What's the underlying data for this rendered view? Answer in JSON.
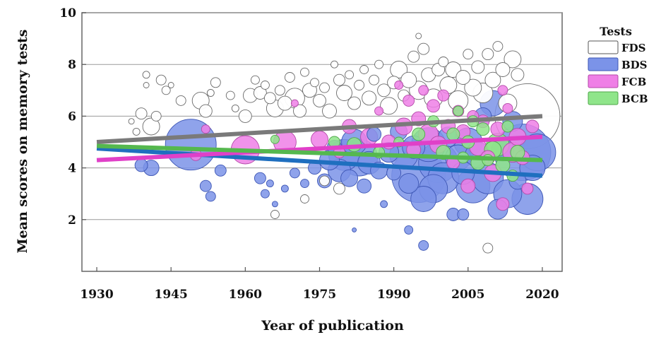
{
  "chart_data": {
    "type": "scatter",
    "subtype": "bubble-meta-regression",
    "title": "",
    "xlabel": "Year of publication",
    "ylabel": "Mean scores on memory tests",
    "xlim": [
      1927,
      2024
    ],
    "ylim": [
      0,
      10
    ],
    "x_ticks": [
      1930,
      1945,
      1960,
      1975,
      1990,
      2005,
      2020
    ],
    "y_ticks": [
      2,
      4,
      6,
      8,
      10
    ],
    "grid": "horizontal",
    "legend": {
      "title": "Tests",
      "placement": "right",
      "entries": [
        {
          "label": "FDS",
          "color": "#ffffff",
          "stroke": "#555555"
        },
        {
          "label": "BDS",
          "color": "#7b93e8",
          "stroke": "#3d56b5"
        },
        {
          "label": "FCB",
          "color": "#ef7fe6",
          "stroke": "#b34aa8"
        },
        {
          "label": "BCB",
          "color": "#8fe58a",
          "stroke": "#4fa84a"
        }
      ]
    },
    "trend_lines": [
      {
        "name": "FDS",
        "color": "#7a7a7a",
        "x": [
          1930,
          2020
        ],
        "y": [
          5.0,
          6.0
        ]
      },
      {
        "name": "BDS",
        "color": "#1f6fbf",
        "x": [
          1930,
          2020
        ],
        "y": [
          4.75,
          3.7
        ]
      },
      {
        "name": "FCB",
        "color": "#e040c8",
        "x": [
          1930,
          2020
        ],
        "y": [
          4.3,
          5.2
        ]
      },
      {
        "name": "BCB",
        "color": "#55b84e",
        "x": [
          1930,
          2020
        ],
        "y": [
          4.85,
          4.3
        ]
      }
    ],
    "series": [
      {
        "name": "FDS",
        "color": "#ffffff",
        "stroke": "#6a6a6a",
        "points": [
          [
            1937,
            5.8,
            4
          ],
          [
            1938,
            5.4,
            5
          ],
          [
            1939,
            6.1,
            8
          ],
          [
            1940,
            7.6,
            5
          ],
          [
            1940,
            7.2,
            4
          ],
          [
            1941,
            5.6,
            12
          ],
          [
            1942,
            6.0,
            7
          ],
          [
            1943,
            7.4,
            7
          ],
          [
            1944,
            7.0,
            6
          ],
          [
            1947,
            6.6,
            7
          ],
          [
            1951,
            6.6,
            12
          ],
          [
            1952,
            6.2,
            9
          ],
          [
            1954,
            7.3,
            7
          ],
          [
            1957,
            6.8,
            6
          ],
          [
            1958,
            6.3,
            5
          ],
          [
            1960,
            6.0,
            9
          ],
          [
            1961,
            6.8,
            10
          ],
          [
            1962,
            7.4,
            6
          ],
          [
            1963,
            6.9,
            9
          ],
          [
            1964,
            7.2,
            6
          ],
          [
            1965,
            6.7,
            8
          ],
          [
            1966,
            6.3,
            12
          ],
          [
            1967,
            7.0,
            7
          ],
          [
            1968,
            6.5,
            10
          ],
          [
            1969,
            7.5,
            7
          ],
          [
            1970,
            6.7,
            14
          ],
          [
            1971,
            6.2,
            9
          ],
          [
            1972,
            7.7,
            6
          ],
          [
            1973,
            7.0,
            10
          ],
          [
            1974,
            7.3,
            6
          ],
          [
            1975,
            6.6,
            9
          ],
          [
            1976,
            7.1,
            7
          ],
          [
            1977,
            6.2,
            10
          ],
          [
            1978,
            8.0,
            5
          ],
          [
            1979,
            7.4,
            8
          ],
          [
            1980,
            6.9,
            11
          ],
          [
            1981,
            7.6,
            6
          ],
          [
            1982,
            6.5,
            9
          ],
          [
            1983,
            7.2,
            7
          ],
          [
            1984,
            7.8,
            6
          ],
          [
            1985,
            6.7,
            10
          ],
          [
            1986,
            7.4,
            7
          ],
          [
            1987,
            8.0,
            6
          ],
          [
            1988,
            7.0,
            9
          ],
          [
            1989,
            6.4,
            12
          ],
          [
            1990,
            7.3,
            9
          ],
          [
            1991,
            7.8,
            12
          ],
          [
            1992,
            6.8,
            8
          ],
          [
            1993,
            7.4,
            11
          ],
          [
            1994,
            8.3,
            8
          ],
          [
            1995,
            9.1,
            4
          ],
          [
            1995,
            7.0,
            13
          ],
          [
            1996,
            8.6,
            8
          ],
          [
            1997,
            7.6,
            10
          ],
          [
            1998,
            6.7,
            13
          ],
          [
            1999,
            7.8,
            9
          ],
          [
            2000,
            8.1,
            7
          ],
          [
            2001,
            7.2,
            12
          ],
          [
            2002,
            7.8,
            11
          ],
          [
            2003,
            6.6,
            14
          ],
          [
            2004,
            7.5,
            10
          ],
          [
            2005,
            8.4,
            7
          ],
          [
            2006,
            7.1,
            12
          ],
          [
            2007,
            7.9,
            9
          ],
          [
            2008,
            6.9,
            14
          ],
          [
            2009,
            8.4,
            8
          ],
          [
            2010,
            7.4,
            11
          ],
          [
            2011,
            8.7,
            7
          ],
          [
            2012,
            7.8,
            10
          ],
          [
            2013,
            6.5,
            13
          ],
          [
            2014,
            8.2,
            12
          ],
          [
            2015,
            7.6,
            9
          ],
          [
            2017,
            6.0,
            46
          ],
          [
            1966,
            2.2,
            6
          ],
          [
            1972,
            2.8,
            6
          ],
          [
            2009,
            0.9,
            7
          ],
          [
            1945,
            7.2,
            4
          ],
          [
            1953,
            6.9,
            5
          ],
          [
            1976,
            3.5,
            7
          ],
          [
            1979,
            3.2,
            8
          ]
        ]
      },
      {
        "name": "BDS",
        "color": "#7b93e8",
        "stroke": "#3d56b5",
        "points": [
          [
            1939,
            4.1,
            9
          ],
          [
            1941,
            4.0,
            11
          ],
          [
            1949,
            4.9,
            36
          ],
          [
            1952,
            3.3,
            8
          ],
          [
            1953,
            2.9,
            7
          ],
          [
            1955,
            3.9,
            8
          ],
          [
            1963,
            3.6,
            8
          ],
          [
            1964,
            3.0,
            6
          ],
          [
            1965,
            3.4,
            5
          ],
          [
            1966,
            2.6,
            4
          ],
          [
            1968,
            3.2,
            5
          ],
          [
            1970,
            3.8,
            7
          ],
          [
            1972,
            3.4,
            6
          ],
          [
            1974,
            4.0,
            9
          ],
          [
            1976,
            3.5,
            10
          ],
          [
            1977,
            4.3,
            14
          ],
          [
            1978,
            4.8,
            10
          ],
          [
            1979,
            3.9,
            16
          ],
          [
            1980,
            4.5,
            22
          ],
          [
            1981,
            3.6,
            12
          ],
          [
            1982,
            5.0,
            18
          ],
          [
            1983,
            4.4,
            26
          ],
          [
            1984,
            3.3,
            10
          ],
          [
            1985,
            4.2,
            16
          ],
          [
            1986,
            5.3,
            10
          ],
          [
            1987,
            3.9,
            12
          ],
          [
            1988,
            2.6,
            5
          ],
          [
            1989,
            4.6,
            14
          ],
          [
            1990,
            3.8,
            10
          ],
          [
            1991,
            5.4,
            12
          ],
          [
            1992,
            4.5,
            20
          ],
          [
            1993,
            3.4,
            14
          ],
          [
            1994,
            4.8,
            16
          ],
          [
            1995,
            3.7,
            38
          ],
          [
            1996,
            2.8,
            18
          ],
          [
            1997,
            4.9,
            24
          ],
          [
            1998,
            3.2,
            20
          ],
          [
            1999,
            4.2,
            28
          ],
          [
            2000,
            3.6,
            22
          ],
          [
            2001,
            5.2,
            14
          ],
          [
            2002,
            2.2,
            9
          ],
          [
            2003,
            4.4,
            18
          ],
          [
            2004,
            3.8,
            16
          ],
          [
            2005,
            5.0,
            20
          ],
          [
            2006,
            3.3,
            24
          ],
          [
            2007,
            4.5,
            18
          ],
          [
            2008,
            6.0,
            12
          ],
          [
            2009,
            3.6,
            22
          ],
          [
            2010,
            6.5,
            18
          ],
          [
            2011,
            2.4,
            14
          ],
          [
            2012,
            4.7,
            16
          ],
          [
            2013,
            3.0,
            20
          ],
          [
            2014,
            5.8,
            14
          ],
          [
            2015,
            3.5,
            12
          ],
          [
            2016,
            4.6,
            40
          ],
          [
            2017,
            2.8,
            22
          ],
          [
            2018,
            4.0,
            18
          ],
          [
            2019,
            4.6,
            26
          ],
          [
            1993,
            1.6,
            6
          ],
          [
            1996,
            1.0,
            7
          ],
          [
            1982,
            1.6,
            3
          ],
          [
            2004,
            2.2,
            8
          ]
        ]
      },
      {
        "name": "FCB",
        "color": "#ef7fe6",
        "stroke": "#b34aa8",
        "points": [
          [
            1950,
            4.5,
            8
          ],
          [
            1952,
            5.5,
            6
          ],
          [
            1960,
            4.7,
            20
          ],
          [
            1968,
            5.0,
            16
          ],
          [
            1970,
            6.5,
            5
          ],
          [
            1975,
            5.1,
            12
          ],
          [
            1979,
            4.6,
            8
          ],
          [
            1981,
            5.6,
            10
          ],
          [
            1985,
            5.2,
            12
          ],
          [
            1987,
            6.2,
            6
          ],
          [
            1989,
            5.0,
            10
          ],
          [
            1991,
            7.2,
            6
          ],
          [
            1992,
            5.6,
            12
          ],
          [
            1993,
            6.6,
            8
          ],
          [
            1994,
            4.7,
            10
          ],
          [
            1995,
            5.9,
            10
          ],
          [
            1996,
            7.0,
            7
          ],
          [
            1997,
            5.3,
            14
          ],
          [
            1998,
            6.4,
            9
          ],
          [
            1999,
            4.9,
            12
          ],
          [
            2000,
            6.8,
            8
          ],
          [
            2001,
            5.6,
            10
          ],
          [
            2002,
            4.2,
            9
          ],
          [
            2003,
            6.2,
            8
          ],
          [
            2004,
            5.4,
            10
          ],
          [
            2005,
            3.3,
            10
          ],
          [
            2006,
            6.0,
            8
          ],
          [
            2007,
            4.8,
            12
          ],
          [
            2008,
            5.8,
            9
          ],
          [
            2009,
            4.4,
            10
          ],
          [
            2010,
            3.8,
            12
          ],
          [
            2011,
            5.5,
            10
          ],
          [
            2012,
            2.6,
            9
          ],
          [
            2013,
            6.3,
            7
          ],
          [
            2014,
            4.6,
            14
          ],
          [
            2015,
            5.2,
            12
          ],
          [
            2016,
            4.4,
            10
          ],
          [
            2017,
            3.2,
            8
          ],
          [
            2018,
            5.6,
            9
          ],
          [
            2012,
            7.0,
            7
          ]
        ]
      },
      {
        "name": "BCB",
        "color": "#8fe58a",
        "stroke": "#4fa84a",
        "points": [
          [
            1966,
            5.1,
            6
          ],
          [
            1978,
            5.0,
            8
          ],
          [
            1982,
            4.9,
            10
          ],
          [
            1987,
            4.6,
            8
          ],
          [
            1991,
            5.0,
            7
          ],
          [
            1995,
            5.3,
            9
          ],
          [
            1998,
            5.8,
            8
          ],
          [
            2000,
            4.6,
            10
          ],
          [
            2002,
            5.3,
            9
          ],
          [
            2003,
            6.2,
            7
          ],
          [
            2004,
            4.4,
            8
          ],
          [
            2005,
            5.0,
            9
          ],
          [
            2006,
            5.8,
            8
          ],
          [
            2007,
            4.2,
            10
          ],
          [
            2008,
            5.5,
            9
          ],
          [
            2009,
            4.3,
            8
          ],
          [
            2010,
            4.7,
            12
          ],
          [
            2011,
            4.9,
            16
          ],
          [
            2012,
            4.1,
            10
          ],
          [
            2013,
            5.6,
            8
          ],
          [
            2014,
            3.7,
            8
          ],
          [
            2015,
            4.6,
            10
          ]
        ]
      }
    ]
  }
}
